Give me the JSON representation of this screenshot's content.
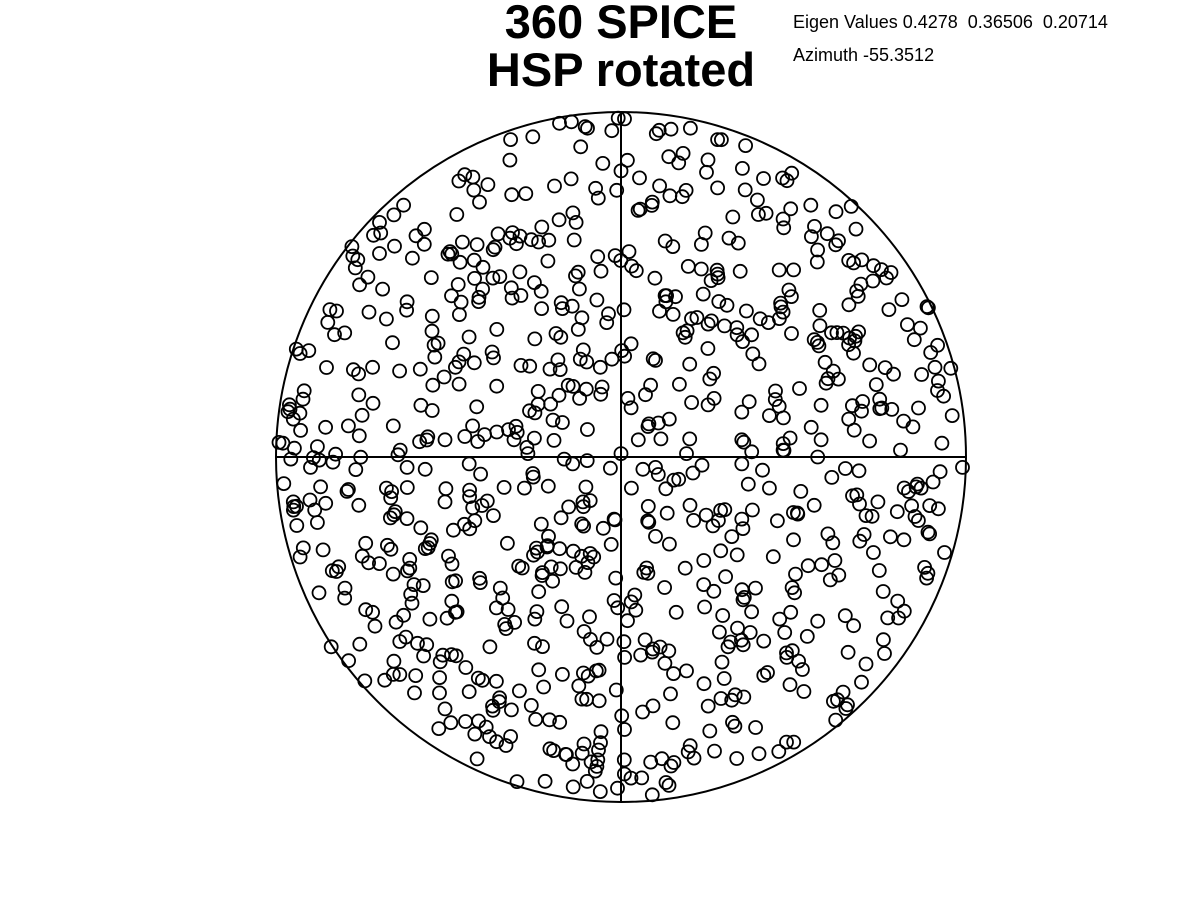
{
  "title_line1": "360 SPICE",
  "title_line2": "HSP rotated",
  "eigen_text": "Eigen Values 0.4278  0.36506  0.20714",
  "azimuth_text": "Azimuth -55.3512",
  "chart_data": {
    "type": "scatter",
    "title": "360 SPICE HSP rotated",
    "projection": "stereonet",
    "xlim": [
      -1,
      1
    ],
    "ylim": [
      -1,
      1
    ],
    "marker": "open-circle",
    "marker_color": "#000000",
    "eigen_values": [
      0.4278,
      0.36506,
      0.20714
    ],
    "azimuth": -55.3512,
    "points_total": 850,
    "points_shown_sample": [
      [
        0.01,
        0.98
      ],
      [
        -0.32,
        0.92
      ],
      [
        0.28,
        0.92
      ],
      [
        0.18,
        0.88
      ],
      [
        -0.47,
        0.8
      ],
      [
        0.28,
        0.78
      ],
      [
        -0.7,
        0.68
      ],
      [
        -0.63,
        0.73
      ],
      [
        -0.57,
        0.66
      ],
      [
        0.55,
        0.73
      ],
      [
        0.47,
        0.69
      ],
      [
        -0.13,
        0.68
      ],
      [
        -0.26,
        0.63
      ],
      [
        0.15,
        0.61
      ],
      [
        -0.7,
        0.59
      ],
      [
        0.57,
        0.6
      ],
      [
        0.66,
        0.57
      ],
      [
        -0.78,
        0.61
      ],
      [
        -0.4,
        0.55
      ],
      [
        -0.55,
        0.52
      ],
      [
        0.28,
        0.53
      ],
      [
        0.34,
        0.62
      ],
      [
        0.73,
        0.51
      ],
      [
        -0.62,
        0.45
      ],
      [
        -0.17,
        0.43
      ],
      [
        0.13,
        0.45
      ],
      [
        0.47,
        0.42
      ],
      [
        0.61,
        0.36
      ],
      [
        -0.85,
        0.39
      ],
      [
        -0.68,
        0.4
      ],
      [
        -0.23,
        0.43
      ],
      [
        0.18,
        0.36
      ],
      [
        0.68,
        0.35
      ],
      [
        0.85,
        0.34
      ],
      [
        -0.53,
        0.33
      ],
      [
        -0.36,
        0.37
      ],
      [
        0.3,
        0.38
      ],
      [
        0.56,
        0.34
      ],
      [
        -0.93,
        0.3
      ],
      [
        -0.72,
        0.26
      ],
      [
        0.91,
        0.26
      ],
      [
        0.79,
        0.24
      ],
      [
        -0.48,
        0.26
      ],
      [
        -0.06,
        0.26
      ],
      [
        0.1,
        0.28
      ],
      [
        0.4,
        0.27
      ],
      [
        0.74,
        0.21
      ],
      [
        0.92,
        0.22
      ],
      [
        -0.76,
        0.18
      ],
      [
        -0.58,
        0.15
      ],
      [
        -0.24,
        0.19
      ],
      [
        -0.12,
        0.17
      ],
      [
        0.02,
        0.17
      ],
      [
        0.27,
        0.17
      ],
      [
        0.58,
        0.15
      ],
      [
        0.75,
        0.14
      ],
      [
        -0.95,
        0.11
      ],
      [
        -0.79,
        0.09
      ],
      [
        -0.66,
        0.09
      ],
      [
        -0.43,
        0.09
      ],
      [
        -0.17,
        0.1
      ],
      [
        0.14,
        0.11
      ],
      [
        0.43,
        0.12
      ],
      [
        0.66,
        0.11
      ],
      [
        0.96,
        0.12
      ],
      [
        -0.51,
        0.05
      ],
      [
        -0.31,
        0.05
      ],
      [
        0.05,
        0.05
      ],
      [
        0.35,
        0.05
      ],
      [
        0.58,
        0.05
      ],
      [
        -0.98,
        0.04
      ],
      [
        0.93,
        0.04
      ],
      [
        -0.88,
        0.03
      ],
      [
        -0.64,
        0.02
      ],
      [
        -0.27,
        0.01
      ],
      [
        0.0,
        0.01
      ],
      [
        0.19,
        0.01
      ],
      [
        0.47,
        0.02
      ],
      [
        0.81,
        0.02
      ],
      [
        -0.9,
        -0.03
      ],
      [
        -0.62,
        -0.03
      ],
      [
        -0.44,
        -0.02
      ],
      [
        -0.14,
        -0.02
      ],
      [
        0.1,
        -0.03
      ],
      [
        0.35,
        -0.02
      ],
      [
        0.69,
        -0.04
      ],
      [
        0.99,
        -0.03
      ],
      [
        -0.68,
        -0.09
      ],
      [
        -0.28,
        -0.09
      ],
      [
        0.03,
        -0.09
      ],
      [
        0.43,
        -0.09
      ],
      [
        0.87,
        -0.09
      ],
      [
        -0.95,
        -0.13
      ],
      [
        -0.76,
        -0.14
      ],
      [
        -0.51,
        -0.13
      ],
      [
        -0.11,
        -0.13
      ],
      [
        0.2,
        -0.14
      ],
      [
        0.56,
        -0.14
      ],
      [
        0.92,
        -0.15
      ],
      [
        -0.88,
        -0.19
      ],
      [
        -0.37,
        -0.17
      ],
      [
        -0.02,
        -0.18
      ],
      [
        0.35,
        -0.18
      ],
      [
        0.71,
        -0.17
      ],
      [
        -0.74,
        -0.25
      ],
      [
        -0.55,
        -0.24
      ],
      [
        -0.21,
        -0.23
      ],
      [
        0.1,
        -0.23
      ],
      [
        0.5,
        -0.24
      ],
      [
        0.82,
        -0.24
      ],
      [
        -0.93,
        -0.29
      ],
      [
        -0.49,
        -0.31
      ],
      [
        -0.13,
        -0.32
      ],
      [
        0.24,
        -0.3
      ],
      [
        0.62,
        -0.3
      ],
      [
        0.88,
        -0.32
      ],
      [
        -0.8,
        -0.38
      ],
      [
        -0.6,
        -0.37
      ],
      [
        -0.35,
        -0.38
      ],
      [
        0.04,
        -0.4
      ],
      [
        0.39,
        -0.38
      ],
      [
        0.76,
        -0.39
      ],
      [
        -0.72,
        -0.45
      ],
      [
        -0.48,
        -0.45
      ],
      [
        -0.25,
        -0.47
      ],
      [
        0.16,
        -0.45
      ],
      [
        0.46,
        -0.47
      ],
      [
        0.65,
        -0.46
      ],
      [
        -0.84,
        -0.55
      ],
      [
        -0.59,
        -0.54
      ],
      [
        -0.38,
        -0.55
      ],
      [
        0.07,
        -0.53
      ],
      [
        0.31,
        -0.55
      ],
      [
        0.54,
        -0.52
      ],
      [
        -0.66,
        -0.63
      ],
      [
        -0.45,
        -0.61
      ],
      [
        -0.17,
        -0.63
      ],
      [
        0.19,
        -0.62
      ],
      [
        0.49,
        -0.66
      ],
      [
        0.71,
        -0.6
      ],
      [
        -0.51,
        -0.73
      ],
      [
        -0.26,
        -0.72
      ],
      [
        0.01,
        -0.79
      ],
      [
        0.29,
        -0.7
      ],
      [
        -0.32,
        -0.81
      ],
      [
        -0.14,
        -0.89
      ],
      [
        0.15,
        -0.77
      ],
      [
        0.4,
        -0.86
      ],
      [
        -0.22,
        -0.94
      ],
      [
        0.06,
        -0.93
      ],
      [
        -0.06,
        -0.97
      ],
      [
        -0.01,
        -0.96
      ],
      [
        0.33,
        -0.78
      ]
    ]
  }
}
